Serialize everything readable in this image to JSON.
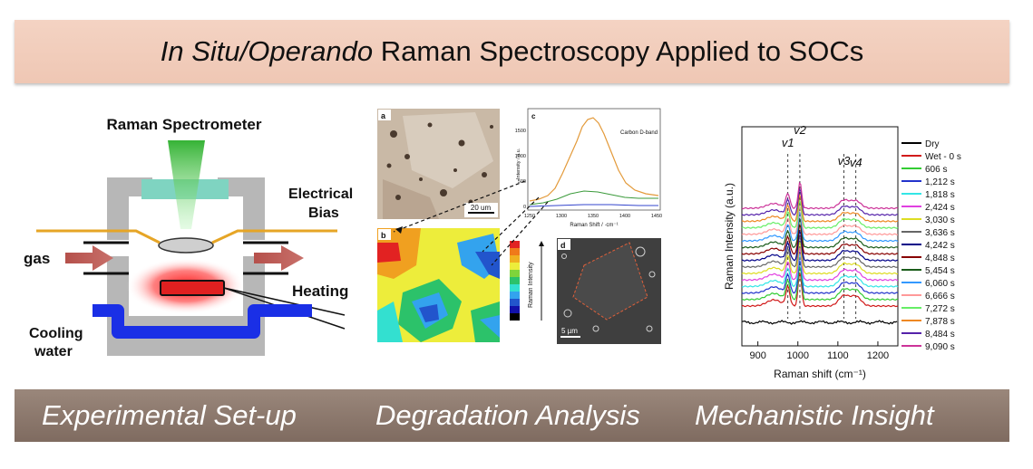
{
  "banner": {
    "title_italic": "In Situ/Operando",
    "title_rest": " Raman Spectroscopy Applied to SOCs"
  },
  "setup": {
    "spectrometer": "Raman Spectrometer",
    "electrical": "Electrical",
    "bias": "Bias",
    "gas": "gas",
    "heating": "Heating",
    "cooling": "Cooling",
    "water": "water"
  },
  "degradation": {
    "panel_a": "a",
    "panel_b": "b",
    "panel_c": "c",
    "panel_d": "d",
    "scale_a": "20 um",
    "scale_d": "5 µm",
    "carbon_label": "Carbon D-band",
    "ylabel": "Intensity / a.u.",
    "xlabel": "Raman Shift / ·cm⁻¹",
    "colorbar_label": "Raman Intensity",
    "yticks": [
      "1500",
      "1000",
      "500",
      "0"
    ],
    "xticks": [
      "1250",
      "1300",
      "1350",
      "1400",
      "1450"
    ]
  },
  "chart_data": {
    "type": "line",
    "xlabel": "Raman shift (cm⁻¹)",
    "ylabel": "Raman Intensity (a.u.)",
    "xlim": [
      860,
      1250
    ],
    "xticks": [
      900,
      1000,
      1100,
      1200
    ],
    "peak_labels": [
      {
        "label": "v1",
        "x": 975
      },
      {
        "label": "v2",
        "x": 1005
      },
      {
        "label": "v3",
        "x": 1115
      },
      {
        "label": "v4",
        "x": 1145
      }
    ],
    "peak_guides_x": [
      975,
      1005,
      1115,
      1145
    ],
    "series": [
      {
        "name": "Dry",
        "color": "#000000"
      },
      {
        "name": "Wet - 0 s",
        "color": "#d11a1a"
      },
      {
        "name": "606 s",
        "color": "#33cc33"
      },
      {
        "name": "1,212 s",
        "color": "#2233cc"
      },
      {
        "name": "1,818 s",
        "color": "#33e6e6"
      },
      {
        "name": "2,424 s",
        "color": "#e040e0"
      },
      {
        "name": "3,030 s",
        "color": "#dddd22"
      },
      {
        "name": "3,636 s",
        "color": "#666666"
      },
      {
        "name": "4,242 s",
        "color": "#000088"
      },
      {
        "name": "4,848 s",
        "color": "#880000"
      },
      {
        "name": "5,454 s",
        "color": "#1a5c1a"
      },
      {
        "name": "6,060 s",
        "color": "#3399ff"
      },
      {
        "name": "6,666 s",
        "color": "#ff9999"
      },
      {
        "name": "7,272 s",
        "color": "#66ee66"
      },
      {
        "name": "7,878 s",
        "color": "#ee8822"
      },
      {
        "name": "8,484 s",
        "color": "#5522aa"
      },
      {
        "name": "9,090 s",
        "color": "#cc3399"
      }
    ]
  },
  "footer": {
    "left": "Experimental Set-up",
    "middle": "Degradation Analysis",
    "right": "Mechanistic Insight"
  }
}
